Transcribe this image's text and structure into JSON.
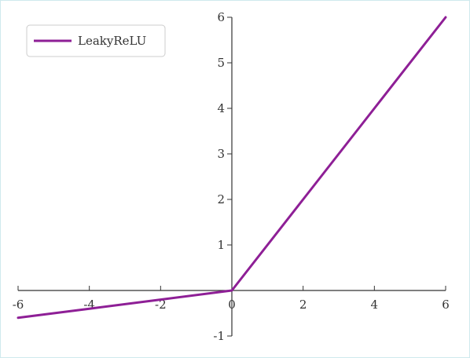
{
  "chart_data": {
    "type": "line",
    "title": "",
    "xlabel": "",
    "ylabel": "",
    "xlim": [
      -6,
      6
    ],
    "ylim": [
      -1,
      6
    ],
    "x_ticks": [
      "-6",
      "-4",
      "-2",
      "0",
      "2",
      "4",
      "6"
    ],
    "x_tick_values": [
      -6,
      -4,
      -2,
      0,
      2,
      4,
      6
    ],
    "y_ticks": [
      "-1",
      "1",
      "2",
      "3",
      "4",
      "5",
      "6"
    ],
    "y_tick_values": [
      -1,
      1,
      2,
      3,
      4,
      5,
      6
    ],
    "grid": false,
    "legend_position": "top-left",
    "series": [
      {
        "name": "LeakyReLU",
        "color": "#8e1f96",
        "x": [
          -6,
          -4,
          -2,
          0,
          2,
          4,
          6
        ],
        "y": [
          -0.6,
          -0.4,
          -0.2,
          0,
          2,
          4,
          6
        ]
      }
    ]
  }
}
